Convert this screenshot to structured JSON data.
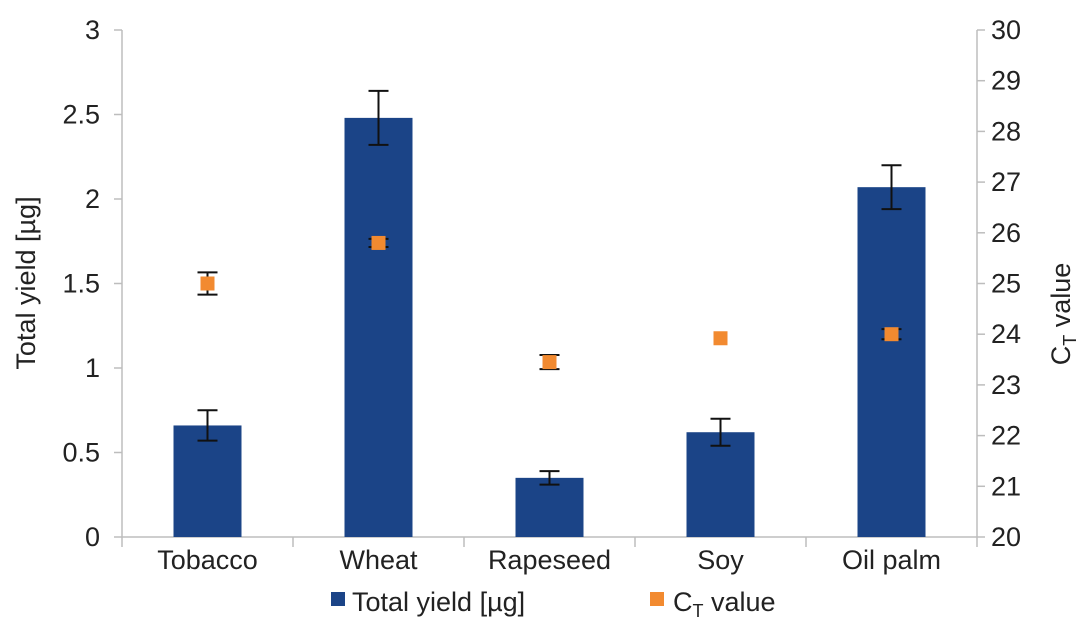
{
  "chart_data": {
    "type": "bar",
    "categories": [
      "Tobacco",
      "Wheat",
      "Rapeseed",
      "Soy",
      "Oil palm"
    ],
    "series": [
      {
        "name": "Total yield [µg]",
        "kind": "bar",
        "axis": "left",
        "color": "#1b4487",
        "values": [
          0.66,
          2.48,
          0.35,
          0.62,
          2.07
        ],
        "error": [
          0.09,
          0.16,
          0.04,
          0.08,
          0.13
        ]
      },
      {
        "name_main": "C",
        "name_sub": "T",
        "name_rest": " value",
        "kind": "marker",
        "axis": "right",
        "color": "#f28a30",
        "values": [
          25.0,
          25.8,
          23.45,
          23.92,
          24.0
        ],
        "error": [
          0.22,
          0.08,
          0.14,
          0.0,
          0.1
        ]
      }
    ],
    "left_axis": {
      "title": "Total yield [µg]",
      "ylim": [
        0,
        3
      ],
      "ticks": [
        "0",
        "0.5",
        "1",
        "1.5",
        "2",
        "2.5",
        "3"
      ]
    },
    "right_axis": {
      "title_main": "C",
      "title_sub": "T",
      "title_rest": " value",
      "ylim": [
        20,
        30
      ],
      "ticks": [
        "20",
        "21",
        "22",
        "23",
        "24",
        "25",
        "26",
        "27",
        "28",
        "29",
        "30"
      ]
    },
    "grid": false,
    "legend": "bottom"
  }
}
